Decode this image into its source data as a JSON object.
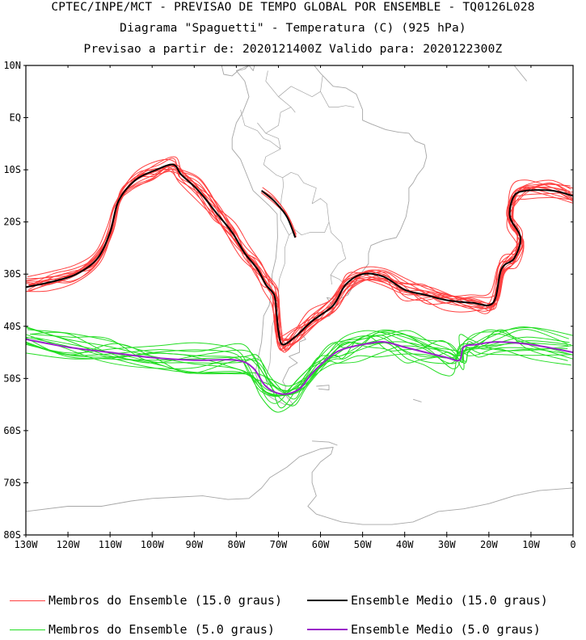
{
  "header": {
    "line1": "CPTEC/INPE/MCT - PREVISAO DE TEMPO GLOBAL POR ENSEMBLE - TQ0126L028",
    "line2": "Diagrama \"Spaguetti\" - Temperatura (C) (925 hPa)",
    "line3": "Previsao a partir de: 2020121400Z  Valido para: 2020122300Z"
  },
  "map": {
    "lon_range": [
      -130,
      0
    ],
    "lat_range": [
      -80,
      10
    ],
    "y_ticks": [
      "10N",
      "EQ",
      "10S",
      "20S",
      "30S",
      "40S",
      "50S",
      "60S",
      "70S",
      "80S"
    ],
    "x_ticks": [
      "130W",
      "120W",
      "110W",
      "100W",
      "90W",
      "80W",
      "70W",
      "60W",
      "50W",
      "40W",
      "30W",
      "20W",
      "10W",
      "0"
    ],
    "coast_color": "#a6a6a6",
    "members_15_color": "#ff4040",
    "mean_15_color": "#000000",
    "members_5_color": "#22dd22",
    "mean_5_color": "#9a22c9"
  },
  "legend": {
    "members_15": "Membros do Ensemble (15.0 graus)",
    "mean_15": "Ensemble Medio (15.0 graus)",
    "members_5": "Membros do Ensemble (5.0 graus)",
    "mean_5": "Ensemble Medio (5.0 graus)"
  },
  "chart_data": {
    "type": "line",
    "title": "Diagrama \"Spaguetti\" - Temperatura (C) (925 hPa)",
    "xlim": [
      -130,
      0
    ],
    "ylim": [
      -80,
      10
    ],
    "series": [
      {
        "name": "Ensemble Medio (15.0 graus)",
        "points": [
          [
            -130,
            -32.5
          ],
          [
            -124,
            -31.5
          ],
          [
            -118,
            -30
          ],
          [
            -113,
            -27
          ],
          [
            -110,
            -22
          ],
          [
            -108,
            -16
          ],
          [
            -104,
            -12
          ],
          [
            -99,
            -10
          ],
          [
            -95,
            -9
          ],
          [
            -93,
            -11
          ],
          [
            -89,
            -14
          ],
          [
            -85,
            -18
          ],
          [
            -81,
            -22
          ],
          [
            -78,
            -26
          ],
          [
            -75,
            -29
          ],
          [
            -73,
            -32
          ],
          [
            -71,
            -34
          ],
          [
            -70.5,
            -37
          ],
          [
            -70,
            -41
          ],
          [
            -69,
            -43.5
          ],
          [
            -66,
            -42
          ],
          [
            -62,
            -39
          ],
          [
            -57,
            -36
          ],
          [
            -54,
            -32
          ],
          [
            -50,
            -30
          ],
          [
            -45,
            -30.5
          ],
          [
            -40,
            -33
          ],
          [
            -35,
            -34
          ],
          [
            -30,
            -35
          ],
          [
            -24,
            -35.5
          ],
          [
            -19,
            -35.5
          ],
          [
            -17,
            -29
          ],
          [
            -14,
            -27
          ],
          [
            -12.5,
            -23
          ],
          [
            -15,
            -19
          ],
          [
            -14,
            -15
          ],
          [
            -11,
            -14
          ],
          [
            -5,
            -14
          ],
          [
            0,
            -15
          ]
        ]
      },
      {
        "name": "Ensemble Medio (15.0 graus)",
        "points": [
          [
            -74,
            -14
          ],
          [
            -71,
            -16
          ],
          [
            -68,
            -19
          ],
          [
            -66,
            -23
          ]
        ]
      },
      {
        "name": "Ensemble Medio (5.0 graus)",
        "points": [
          [
            -130,
            -42.5
          ],
          [
            -120,
            -44
          ],
          [
            -110,
            -45
          ],
          [
            -100,
            -46
          ],
          [
            -90,
            -46.5
          ],
          [
            -80,
            -46.5
          ],
          [
            -76,
            -48
          ],
          [
            -73,
            -51.5
          ],
          [
            -69,
            -53
          ],
          [
            -65,
            -52
          ],
          [
            -62,
            -49
          ],
          [
            -58,
            -46
          ],
          [
            -55,
            -44.5
          ],
          [
            -50,
            -43.5
          ],
          [
            -45,
            -43
          ],
          [
            -40,
            -44
          ],
          [
            -35,
            -45
          ],
          [
            -30,
            -46
          ],
          [
            -27,
            -46.5
          ],
          [
            -26,
            -44
          ],
          [
            -23,
            -43.5
          ],
          [
            -18,
            -43
          ],
          [
            -10,
            -43.5
          ],
          [
            0,
            -45
          ]
        ]
      }
    ]
  }
}
